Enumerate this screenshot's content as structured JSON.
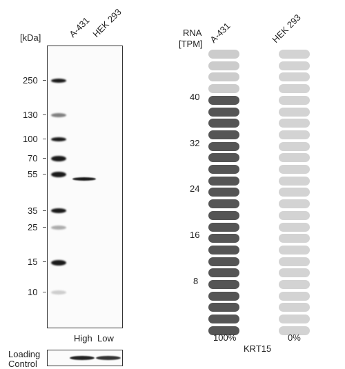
{
  "blot": {
    "kda_label": "[kDa]",
    "lanes": [
      "A-431",
      "HEK 293"
    ],
    "markers": [
      "250",
      "130",
      "100",
      "70",
      "55",
      "35",
      "25",
      "15",
      "10"
    ],
    "lane_levels": [
      "High",
      "Low"
    ],
    "loading_control_label": [
      "Loading",
      "Control"
    ]
  },
  "rna": {
    "header": [
      "RNA",
      "[TPM]"
    ],
    "cell_lines": [
      "A-431",
      "HEK 293"
    ],
    "scale_ticks": [
      "40",
      "32",
      "24",
      "16",
      "8"
    ],
    "percentages": [
      "100%",
      "0%"
    ],
    "gene": "KRT15",
    "total_segments": 25,
    "a431_filled_segments": 21,
    "hek293_filled_segments": 0,
    "colors": {
      "filled": "#555555",
      "empty_a431": "#cccccc",
      "empty_hek293": "#d3d3d3"
    }
  }
}
